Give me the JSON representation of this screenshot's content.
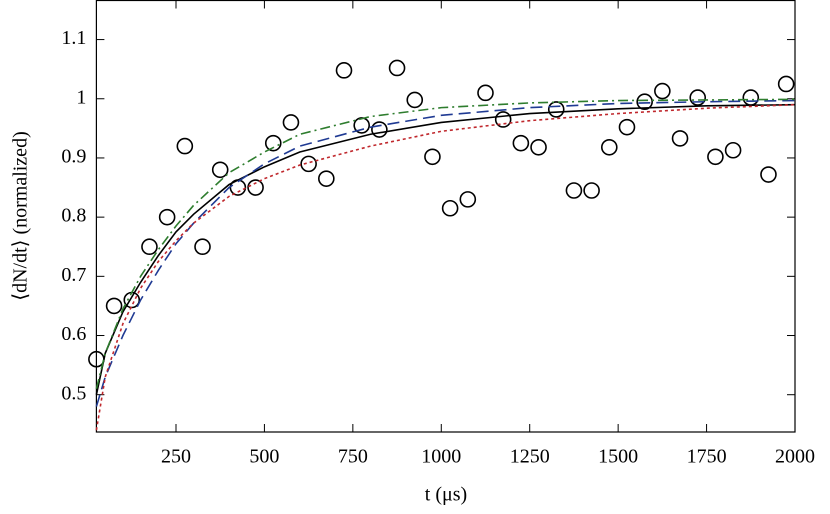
{
  "chart_data": {
    "type": "scatter",
    "x_label": "t (μs)",
    "y_label": "⟨dN/dt⟩ (normalized)",
    "xlim": [
      25,
      2000
    ],
    "ylim": [
      0.437,
      1.166
    ],
    "xticks": [
      250,
      500,
      750,
      1000,
      1250,
      1500,
      1750,
      2000
    ],
    "yticks": [
      0.5,
      0.6,
      0.7,
      0.8,
      0.9,
      1,
      1.1
    ],
    "series": [
      {
        "style": "circle",
        "color": "#000000",
        "x": [
          25,
          75,
          125,
          175,
          225,
          275,
          325,
          375,
          425,
          475,
          525,
          575,
          625,
          675,
          725,
          775,
          825,
          875,
          925,
          975,
          1025,
          1075,
          1125,
          1175,
          1225,
          1275,
          1325,
          1375,
          1425,
          1475,
          1525,
          1575,
          1625,
          1675,
          1725,
          1775,
          1825,
          1875,
          1925,
          1975
        ],
        "values": [
          0.56,
          0.65,
          0.66,
          0.75,
          0.8,
          0.92,
          0.75,
          0.88,
          0.85,
          0.85,
          0.925,
          0.96,
          0.89,
          0.865,
          1.048,
          0.955,
          0.948,
          1.052,
          0.998,
          0.902,
          0.815,
          0.83,
          1.01,
          0.965,
          0.925,
          0.918,
          0.982,
          0.845,
          0.845,
          0.918,
          0.952,
          0.995,
          1.013,
          0.933,
          1.002,
          0.902,
          0.913,
          1.002,
          0.872,
          1.025
        ]
      },
      {
        "style": "solid",
        "color": "#000000",
        "x": [
          25,
          50,
          100,
          150,
          200,
          250,
          300,
          400,
          500,
          600,
          800,
          1000,
          1250,
          1500,
          1750,
          2000
        ],
        "values": [
          0.5,
          0.57,
          0.64,
          0.69,
          0.735,
          0.775,
          0.805,
          0.855,
          0.885,
          0.91,
          0.94,
          0.96,
          0.975,
          0.983,
          0.988,
          0.99
        ]
      },
      {
        "style": "dashed",
        "color": "#1f3a93",
        "x": [
          25,
          50,
          100,
          150,
          200,
          250,
          300,
          400,
          500,
          600,
          800,
          1000,
          1250,
          1500,
          1750,
          2000
        ],
        "values": [
          0.48,
          0.53,
          0.6,
          0.66,
          0.71,
          0.755,
          0.79,
          0.85,
          0.89,
          0.92,
          0.952,
          0.972,
          0.985,
          0.992,
          0.995,
          0.997
        ]
      },
      {
        "style": "dashdot",
        "color": "#2e7d2e",
        "x": [
          25,
          50,
          100,
          150,
          200,
          250,
          300,
          400,
          500,
          600,
          800,
          1000,
          1250,
          1500,
          1750,
          2000
        ],
        "values": [
          0.51,
          0.57,
          0.645,
          0.7,
          0.745,
          0.785,
          0.82,
          0.875,
          0.91,
          0.94,
          0.97,
          0.985,
          0.993,
          0.997,
          0.998,
          0.999
        ]
      },
      {
        "style": "dotted",
        "color": "#c0282d",
        "x": [
          25,
          50,
          100,
          150,
          200,
          250,
          300,
          400,
          500,
          600,
          800,
          1000,
          1250,
          1500,
          1750,
          2000
        ],
        "values": [
          0.44,
          0.53,
          0.62,
          0.68,
          0.725,
          0.76,
          0.79,
          0.835,
          0.865,
          0.888,
          0.92,
          0.945,
          0.963,
          0.975,
          0.984,
          0.99
        ]
      }
    ]
  }
}
